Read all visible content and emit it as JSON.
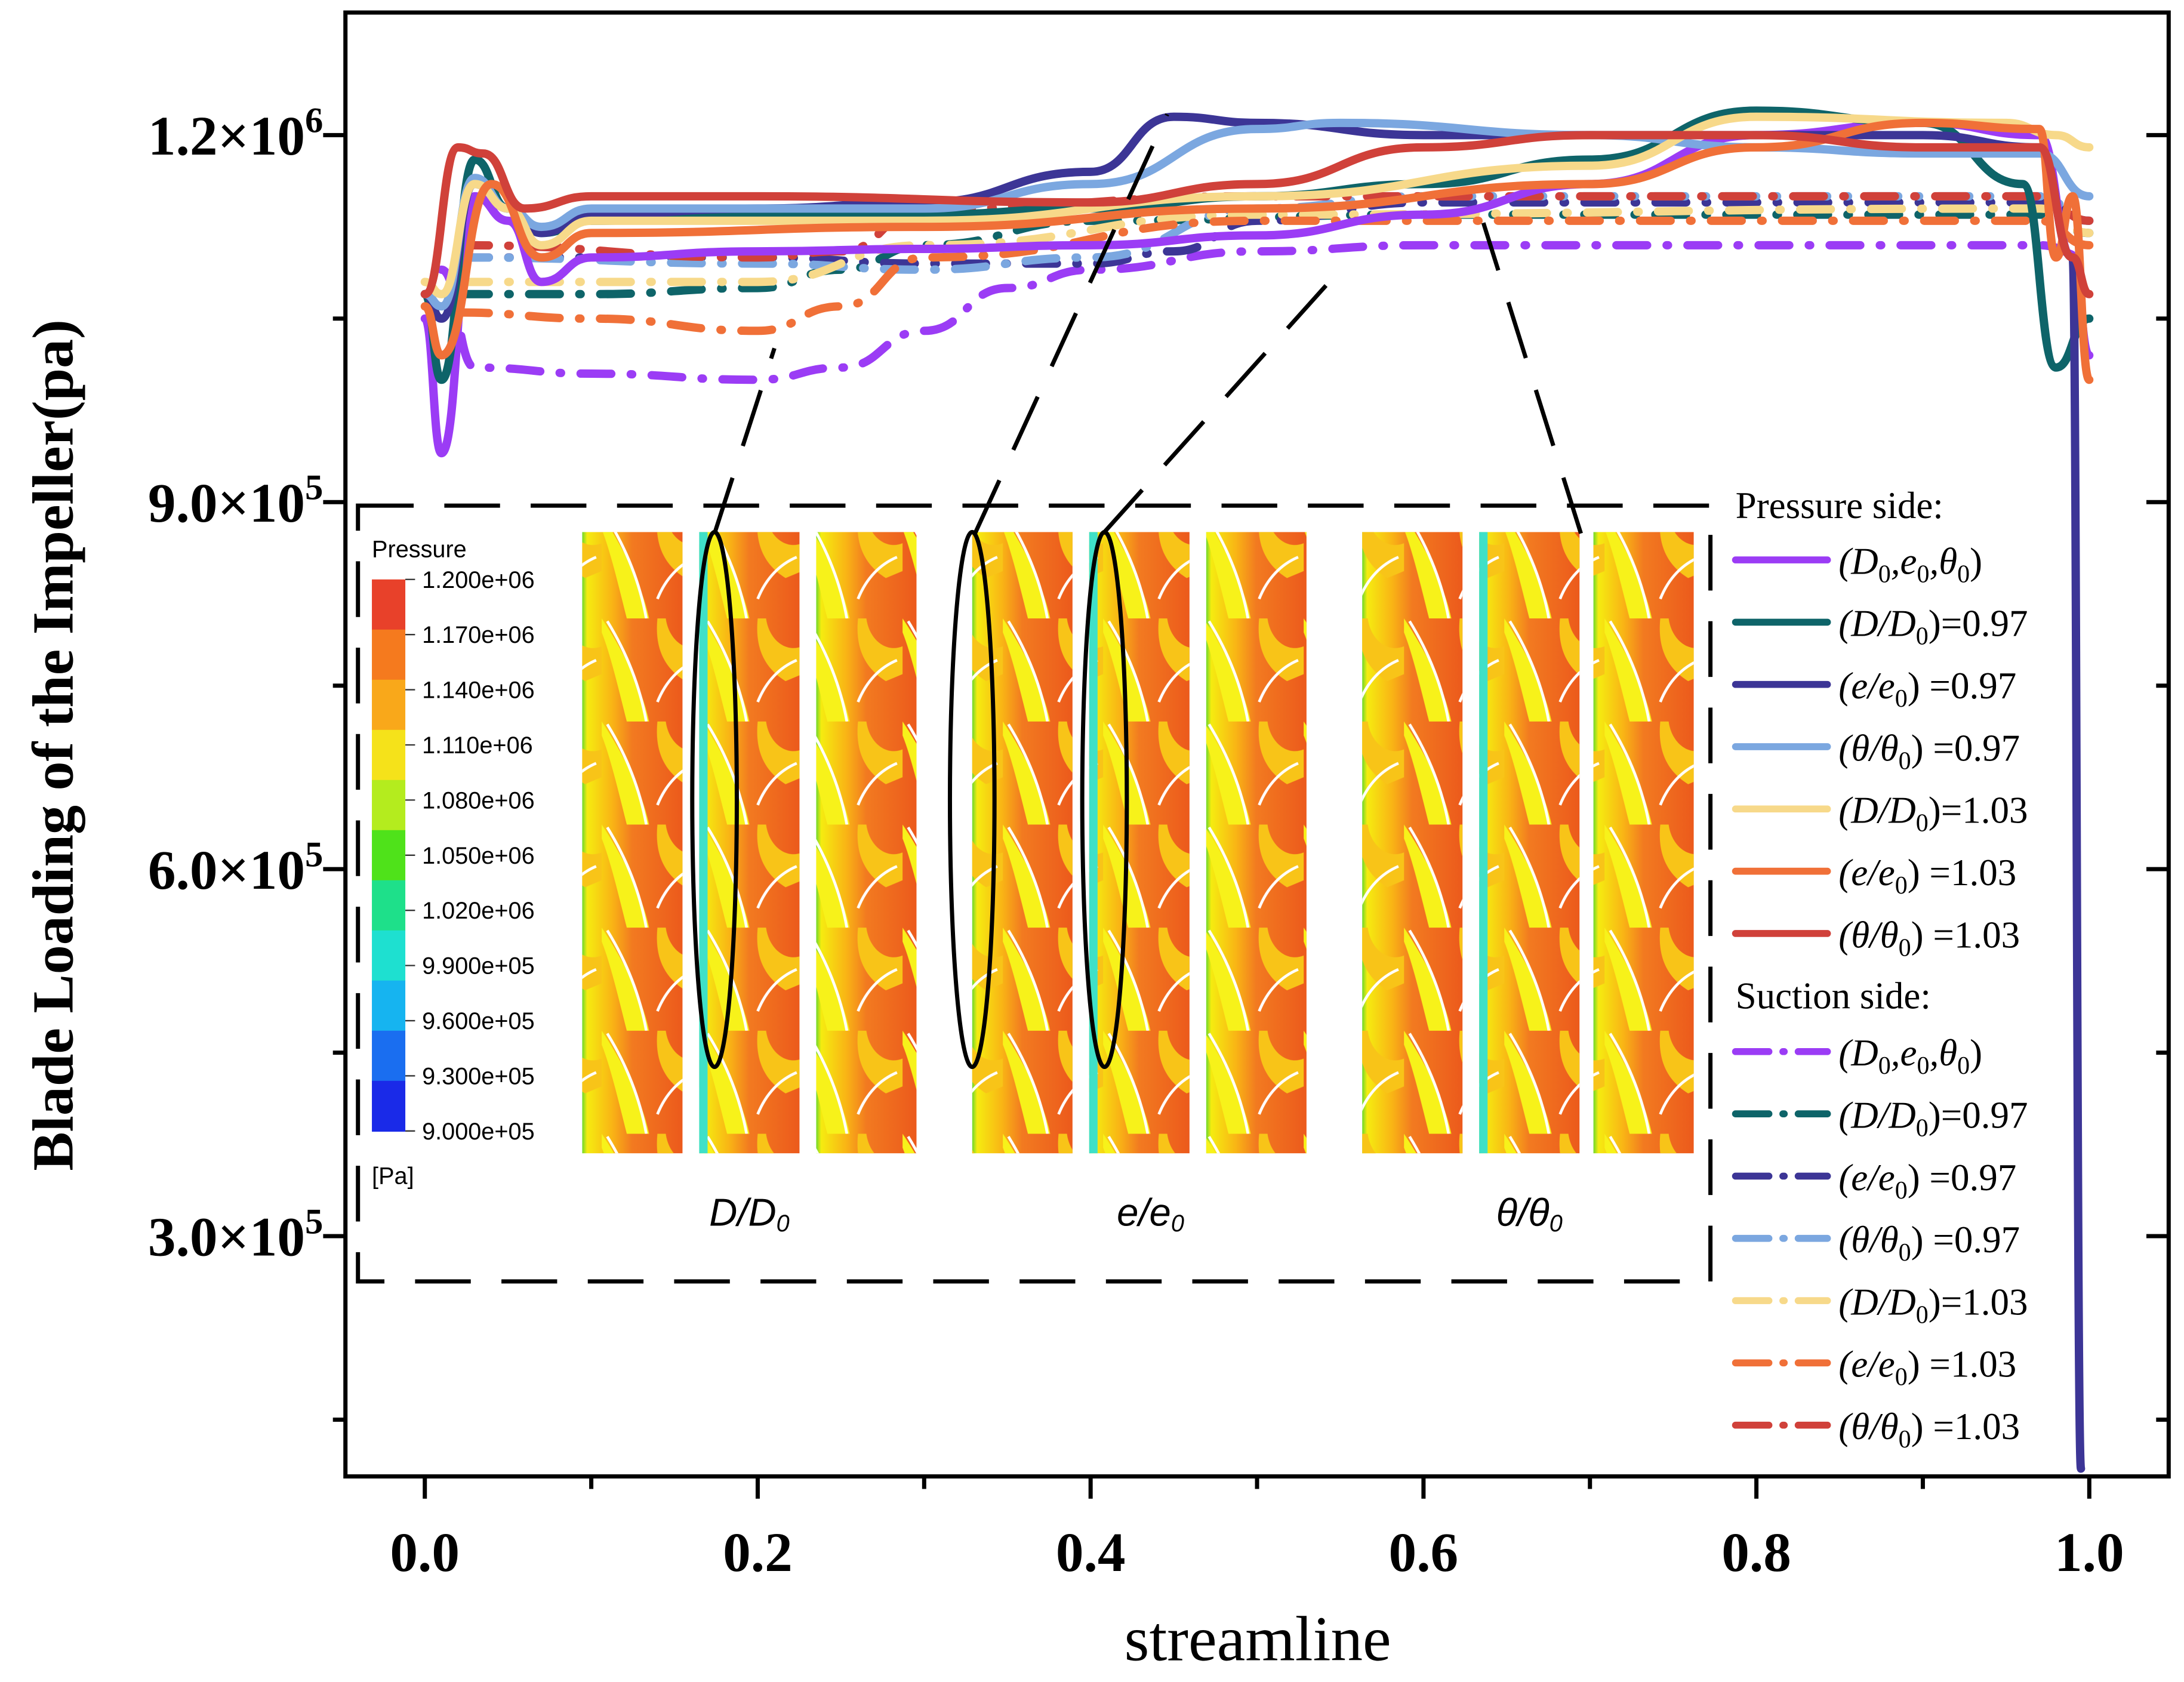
{
  "chart_data": {
    "type": "line",
    "xlabel": "streamline",
    "ylabel": "Blade Loading of the Impeller(pa)",
    "xlim": [
      -0.05,
      1.05
    ],
    "ylim": [
      103000,
      1300000
    ],
    "x_ticks": [
      {
        "value": 0.0,
        "label": "0.0"
      },
      {
        "value": 0.2,
        "label": "0.2"
      },
      {
        "value": 0.4,
        "label": "0.4"
      },
      {
        "value": 0.6,
        "label": "0.6"
      },
      {
        "value": 0.8,
        "label": "0.8"
      },
      {
        "value": 1.0,
        "label": "1.0"
      }
    ],
    "y_ticks": [
      {
        "value": 1200000,
        "base": "1.2×10",
        "exp": "6"
      },
      {
        "value": 900000,
        "base": "9.0×10",
        "exp": "5"
      },
      {
        "value": 600000,
        "base": "6.0×10",
        "exp": "5"
      },
      {
        "value": 300000,
        "base": "3.0×10",
        "exp": "5"
      }
    ],
    "legend": {
      "placement": "right",
      "pressure_title": "Pressure side:",
      "suction_title": "Suction side:"
    },
    "series": [
      {
        "name": "(D0,e0,θ0)",
        "side": "pressure",
        "color": "#9b3cf5",
        "points": [
          [
            0,
            1050000
          ],
          [
            0.01,
            940000
          ],
          [
            0.03,
            1150000
          ],
          [
            0.05,
            1130000
          ],
          [
            0.07,
            1080000
          ],
          [
            0.1,
            1100000
          ],
          [
            0.2,
            1105000
          ],
          [
            0.3,
            1107000
          ],
          [
            0.4,
            1110000
          ],
          [
            0.5,
            1118000
          ],
          [
            0.6,
            1135000
          ],
          [
            0.7,
            1160000
          ],
          [
            0.8,
            1200000
          ],
          [
            0.9,
            1210000
          ],
          [
            0.97,
            1200000
          ],
          [
            0.99,
            1100000
          ],
          [
            1.0,
            1020000
          ]
        ]
      },
      {
        "name": "(D/D0)=0.97",
        "side": "pressure",
        "color": "#0e6469",
        "points": [
          [
            0,
            1070000
          ],
          [
            0.01,
            1000000
          ],
          [
            0.03,
            1180000
          ],
          [
            0.05,
            1140000
          ],
          [
            0.07,
            1120000
          ],
          [
            0.1,
            1130000
          ],
          [
            0.2,
            1135000
          ],
          [
            0.3,
            1135000
          ],
          [
            0.4,
            1140000
          ],
          [
            0.5,
            1150000
          ],
          [
            0.6,
            1160000
          ],
          [
            0.7,
            1180000
          ],
          [
            0.8,
            1220000
          ],
          [
            0.9,
            1210000
          ],
          [
            0.96,
            1160000
          ],
          [
            0.98,
            1010000
          ],
          [
            1.0,
            1050000
          ]
        ]
      },
      {
        "name": "(e/e0) =0.97",
        "side": "pressure",
        "color": "#3c3596",
        "points": [
          [
            0,
            1070000
          ],
          [
            0.01,
            1050000
          ],
          [
            0.03,
            1160000
          ],
          [
            0.05,
            1140000
          ],
          [
            0.07,
            1120000
          ],
          [
            0.1,
            1135000
          ],
          [
            0.2,
            1140000
          ],
          [
            0.3,
            1145000
          ],
          [
            0.4,
            1170000
          ],
          [
            0.45,
            1215000
          ],
          [
            0.5,
            1210000
          ],
          [
            0.6,
            1200000
          ],
          [
            0.7,
            1200000
          ],
          [
            0.8,
            1200000
          ],
          [
            0.9,
            1200000
          ],
          [
            0.97,
            1190000
          ],
          [
            0.99,
            1100000
          ],
          [
            0.995,
            110000
          ]
        ]
      },
      {
        "name": "(θ/θ0) =0.97",
        "side": "pressure",
        "color": "#7ba7e0",
        "points": [
          [
            0,
            1070000
          ],
          [
            0.01,
            1060000
          ],
          [
            0.03,
            1165000
          ],
          [
            0.05,
            1140000
          ],
          [
            0.07,
            1125000
          ],
          [
            0.1,
            1140000
          ],
          [
            0.2,
            1140000
          ],
          [
            0.3,
            1140000
          ],
          [
            0.4,
            1160000
          ],
          [
            0.5,
            1205000
          ],
          [
            0.55,
            1210000
          ],
          [
            0.7,
            1200000
          ],
          [
            0.8,
            1190000
          ],
          [
            0.9,
            1185000
          ],
          [
            0.97,
            1185000
          ],
          [
            1.0,
            1150000
          ]
        ]
      },
      {
        "name": "(D/D0)=1.03",
        "side": "pressure",
        "color": "#f7d98a",
        "points": [
          [
            0,
            1080000
          ],
          [
            0.01,
            1070000
          ],
          [
            0.03,
            1160000
          ],
          [
            0.05,
            1140000
          ],
          [
            0.07,
            1110000
          ],
          [
            0.1,
            1130000
          ],
          [
            0.3,
            1130000
          ],
          [
            0.5,
            1150000
          ],
          [
            0.7,
            1175000
          ],
          [
            0.8,
            1215000
          ],
          [
            0.95,
            1210000
          ],
          [
            0.98,
            1200000
          ],
          [
            1.0,
            1190000
          ]
        ]
      },
      {
        "name": "(e/e0) =1.03",
        "side": "pressure",
        "color": "#f07038",
        "points": [
          [
            0,
            1060000
          ],
          [
            0.01,
            1020000
          ],
          [
            0.04,
            1160000
          ],
          [
            0.07,
            1100000
          ],
          [
            0.1,
            1120000
          ],
          [
            0.3,
            1125000
          ],
          [
            0.5,
            1140000
          ],
          [
            0.7,
            1160000
          ],
          [
            0.8,
            1190000
          ],
          [
            0.9,
            1210000
          ],
          [
            0.97,
            1205000
          ],
          [
            0.98,
            1100000
          ],
          [
            0.99,
            1150000
          ],
          [
            1.0,
            1000000
          ]
        ]
      },
      {
        "name": "(θ/θ0) =1.03",
        "side": "pressure",
        "color": "#d0413a",
        "points": [
          [
            0,
            1070000
          ],
          [
            0.02,
            1190000
          ],
          [
            0.035,
            1185000
          ],
          [
            0.06,
            1140000
          ],
          [
            0.1,
            1150000
          ],
          [
            0.2,
            1150000
          ],
          [
            0.4,
            1145000
          ],
          [
            0.5,
            1160000
          ],
          [
            0.6,
            1190000
          ],
          [
            0.7,
            1200000
          ],
          [
            0.8,
            1200000
          ],
          [
            0.9,
            1190000
          ],
          [
            0.97,
            1190000
          ],
          [
            0.99,
            1100000
          ],
          [
            1.0,
            1070000
          ]
        ]
      },
      {
        "name": "(D0,e0,θ0)",
        "side": "suction",
        "color": "#9b3cf5",
        "points": [
          [
            0.01,
            1090000
          ],
          [
            0.03,
            1010000
          ],
          [
            0.1,
            1005000
          ],
          [
            0.2,
            1000000
          ],
          [
            0.25,
            1010000
          ],
          [
            0.3,
            1040000
          ],
          [
            0.35,
            1075000
          ],
          [
            0.4,
            1090000
          ],
          [
            0.5,
            1105000
          ],
          [
            0.6,
            1110000
          ],
          [
            0.8,
            1110000
          ],
          [
            0.97,
            1110000
          ],
          [
            1.0,
            1100000
          ]
        ]
      },
      {
        "name": "(D/D0)=0.97",
        "side": "suction",
        "color": "#0e6469",
        "points": [
          [
            0.02,
            1070000
          ],
          [
            0.1,
            1070000
          ],
          [
            0.2,
            1075000
          ],
          [
            0.25,
            1090000
          ],
          [
            0.3,
            1110000
          ],
          [
            0.4,
            1130000
          ],
          [
            0.6,
            1135000
          ],
          [
            0.97,
            1135000
          ],
          [
            1.0,
            1120000
          ]
        ]
      },
      {
        "name": "(e/e0) =0.97",
        "side": "suction",
        "color": "#3c3596",
        "points": [
          [
            0.02,
            1100000
          ],
          [
            0.2,
            1100000
          ],
          [
            0.3,
            1095000
          ],
          [
            0.4,
            1095000
          ],
          [
            0.45,
            1105000
          ],
          [
            0.5,
            1130000
          ],
          [
            0.6,
            1145000
          ],
          [
            0.97,
            1145000
          ],
          [
            1.0,
            1130000
          ]
        ]
      },
      {
        "name": "(θ/θ0) =0.97",
        "side": "suction",
        "color": "#7ba7e0",
        "points": [
          [
            0.02,
            1100000
          ],
          [
            0.2,
            1095000
          ],
          [
            0.3,
            1090000
          ],
          [
            0.4,
            1100000
          ],
          [
            0.5,
            1140000
          ],
          [
            0.6,
            1150000
          ],
          [
            0.97,
            1150000
          ],
          [
            1.0,
            1130000
          ]
        ]
      },
      {
        "name": "(D/D0)=1.03",
        "side": "suction",
        "color": "#f7d98a",
        "points": [
          [
            0.02,
            1080000
          ],
          [
            0.2,
            1080000
          ],
          [
            0.3,
            1110000
          ],
          [
            0.5,
            1135000
          ],
          [
            0.97,
            1140000
          ],
          [
            1.0,
            1120000
          ]
        ]
      },
      {
        "name": "(e/e0) =1.03",
        "side": "suction",
        "color": "#f07038",
        "points": [
          [
            0.02,
            1055000
          ],
          [
            0.1,
            1050000
          ],
          [
            0.2,
            1040000
          ],
          [
            0.25,
            1060000
          ],
          [
            0.3,
            1100000
          ],
          [
            0.5,
            1130000
          ],
          [
            0.97,
            1130000
          ],
          [
            1.0,
            1110000
          ]
        ]
      },
      {
        "name": "(θ/θ0) =1.03",
        "side": "suction",
        "color": "#d0413a",
        "points": [
          [
            0.02,
            1110000
          ],
          [
            0.2,
            1100000
          ],
          [
            0.25,
            1105000
          ],
          [
            0.3,
            1140000
          ],
          [
            0.5,
            1150000
          ],
          [
            0.97,
            1150000
          ],
          [
            1.0,
            1130000
          ]
        ]
      }
    ],
    "inset": {
      "colorbar_title": "Pressure",
      "colorbar_unit": "[Pa]",
      "colorbar_labels": [
        "1.200e+06",
        "1.170e+06",
        "1.140e+06",
        "1.110e+06",
        "1.080e+06",
        "1.050e+06",
        "1.020e+06",
        "9.900e+05",
        "9.600e+05",
        "9.300e+05",
        "9.000e+05"
      ],
      "colorbar_colors": [
        "#e8412a",
        "#f57a1e",
        "#f9a81a",
        "#f5e21a",
        "#b4ec1e",
        "#4fe21a",
        "#1ee08a",
        "#1ee0d0",
        "#16b4f0",
        "#1a6ef0",
        "#1a2ae8"
      ],
      "group_labels": [
        {
          "main": "D/D",
          "sub": "0"
        },
        {
          "main": "e/e",
          "sub": "0"
        },
        {
          "main": "θ/θ",
          "sub": "0"
        }
      ]
    }
  }
}
